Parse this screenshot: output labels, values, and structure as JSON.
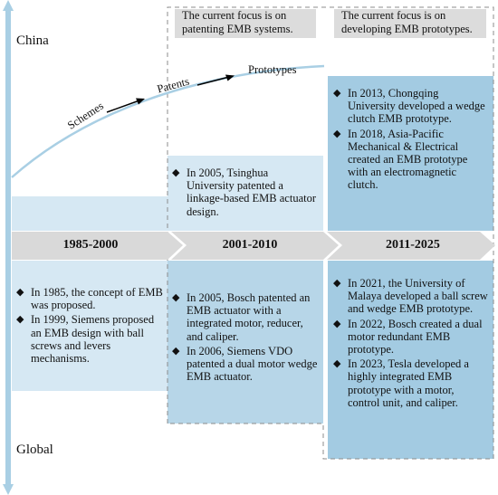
{
  "axis": {
    "top_label": "China",
    "bottom_label": "Global"
  },
  "periods": [
    {
      "label": "1985-2000"
    },
    {
      "label": "2001-2010"
    },
    {
      "label": "2011-2025"
    }
  ],
  "focus_notes": [
    {
      "text": "The current focus is on patenting EMB systems."
    },
    {
      "text": "The current focus is on developing EMB prototypes."
    }
  ],
  "trend_labels": {
    "schemes": "Schemes",
    "patents": "Patents",
    "prototypes": "Prototypes"
  },
  "china": {
    "period_2001_2010": [
      "In 2005, Tsinghua University patented a linkage-based EMB actuator design."
    ],
    "period_2011_2025": [
      "In 2013, Chongqing University developed a wedge clutch EMB prototype.",
      "In 2018, Asia-Pacific Mechanical & Electrical created an EMB prototype with an electromagnetic clutch."
    ]
  },
  "global": {
    "period_1985_2000": [
      "In 1985, the concept of EMB was proposed.",
      "In 1999, Siemens proposed an EMB design with ball screws and levers mechanisms."
    ],
    "period_2001_2010": [
      "In 2005, Bosch patented an EMB actuator with a integrated motor, reducer, and caliper.",
      "In 2006, Siemens VDO patented a dual motor wedge EMB actuator."
    ],
    "period_2011_2025": [
      "In 2021, the University of Malaya developed a ball screw and wedge EMB prototype.",
      "In 2022, Bosch created a dual motor redundant EMB prototype.",
      "In 2023, Tesla developed a highly integrated EMB prototype with a motor, control unit, and caliper."
    ]
  },
  "colors": {
    "axis": "#a9cfe4",
    "band": "#d9d9d9",
    "box_light": "#d6e8f3",
    "box_mid": "#b7d6e8",
    "box_dark": "#a3cbe2",
    "focus_bg": "#dcdcdc"
  }
}
